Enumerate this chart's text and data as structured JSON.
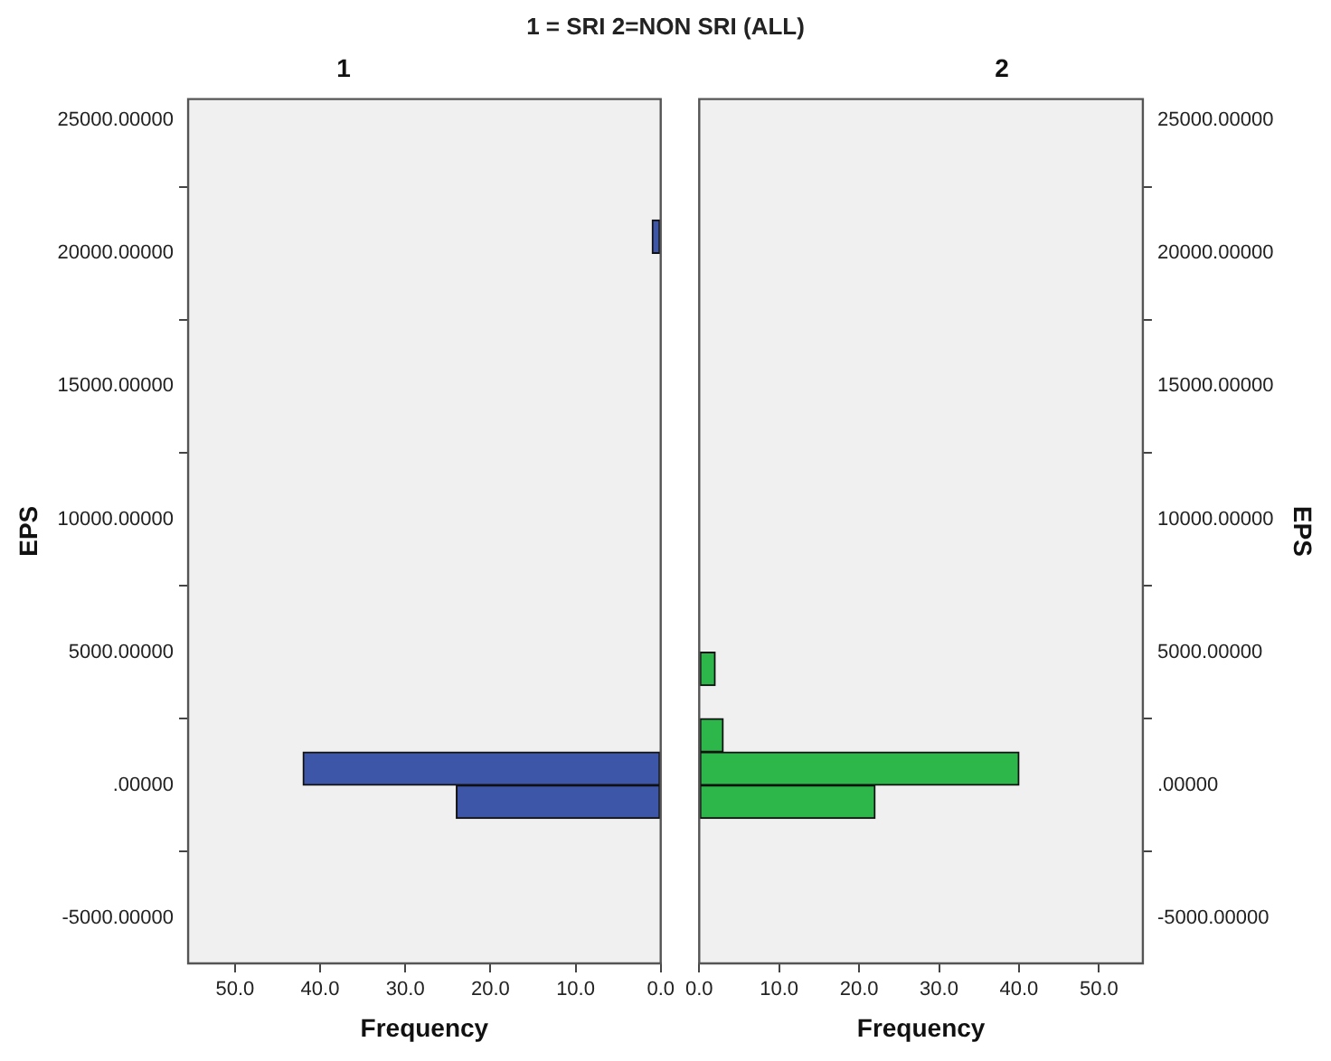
{
  "chart_data": [
    {
      "type": "histogram",
      "orientation": "horizontal",
      "title": "1 = SRI 2=NON SRI (ALL)",
      "subtitle": "1",
      "xlabel": "Frequency",
      "ylabel": "EPS",
      "color": "#3d56a8",
      "bins": [
        -1250,
        0,
        1250,
        2500,
        3750,
        5000,
        6250,
        7500,
        8750,
        10000,
        11250,
        12500,
        13750,
        15000,
        16250,
        17500,
        18750,
        20000,
        21250
      ],
      "values": [
        24,
        42,
        0,
        0,
        0,
        0,
        0,
        0,
        0,
        0,
        0,
        0,
        0,
        0,
        0,
        0,
        0,
        1
      ],
      "xlim": [
        55.5,
        0
      ],
      "xticks": [
        {
          "value": 50,
          "label": "50.0"
        },
        {
          "value": 40,
          "label": "40.0"
        },
        {
          "value": 30,
          "label": "30.0"
        },
        {
          "value": 20,
          "label": "20.0"
        },
        {
          "value": 10,
          "label": "10.0"
        },
        {
          "value": 0,
          "label": "0.0"
        }
      ],
      "ylim": [
        -6700,
        25800
      ],
      "yticks": [
        {
          "value": -5000,
          "label": "-5000.00000"
        },
        {
          "value": 0,
          "label": ".00000"
        },
        {
          "value": 5000,
          "label": "5000.00000"
        },
        {
          "value": 10000,
          "label": "10000.00000"
        },
        {
          "value": 15000,
          "label": "15000.00000"
        },
        {
          "value": 20000,
          "label": "20000.00000"
        },
        {
          "value": 25000,
          "label": "25000.00000"
        }
      ],
      "grid": false,
      "legend": false
    },
    {
      "type": "histogram",
      "orientation": "horizontal",
      "subtitle": "2",
      "xlabel": "Frequency",
      "ylabel": "EPS",
      "color": "#2db64a",
      "bins": [
        -1250,
        0,
        1250,
        2500,
        3750,
        5000,
        6250,
        7500,
        8750,
        10000,
        11250,
        12500,
        13750,
        15000,
        16250,
        17500,
        18750,
        20000,
        21250
      ],
      "values": [
        22,
        40,
        3,
        0,
        2,
        0,
        0,
        0,
        0,
        0,
        0,
        0,
        0,
        0,
        0,
        0,
        0,
        0
      ],
      "xlim": [
        0,
        55.5
      ],
      "xticks": [
        {
          "value": 0,
          "label": "0.0"
        },
        {
          "value": 10,
          "label": "10.0"
        },
        {
          "value": 20,
          "label": "20.0"
        },
        {
          "value": 30,
          "label": "30.0"
        },
        {
          "value": 40,
          "label": "40.0"
        },
        {
          "value": 50,
          "label": "50.0"
        }
      ],
      "ylim": [
        -6700,
        25800
      ],
      "yticks": [
        {
          "value": -5000,
          "label": "-5000.00000"
        },
        {
          "value": 0,
          "label": ".00000"
        },
        {
          "value": 5000,
          "label": "5000.00000"
        },
        {
          "value": 10000,
          "label": "10000.00000"
        },
        {
          "value": 15000,
          "label": "15000.00000"
        },
        {
          "value": 20000,
          "label": "20000.00000"
        },
        {
          "value": 25000,
          "label": "25000.00000"
        }
      ],
      "grid": false,
      "legend": false
    }
  ]
}
